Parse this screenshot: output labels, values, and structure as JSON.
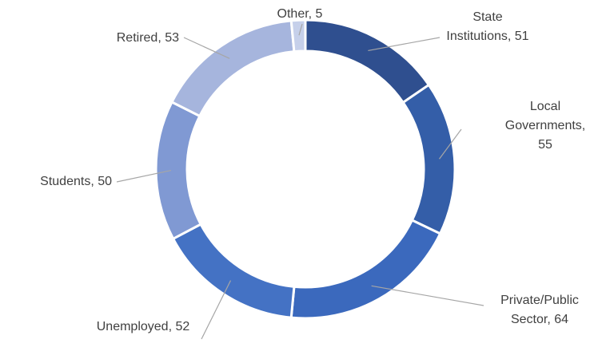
{
  "chart_data": {
    "type": "donut",
    "values": [
      51,
      55,
      64,
      52,
      50,
      53,
      5
    ],
    "value_labels": [
      "State Institutions, 51",
      "Local Governments, 55",
      "Private/Public Sector, 64",
      "Unemployed, 52",
      "Students, 50",
      "Retired, 53",
      "Other, 5"
    ],
    "colors": [
      "#2f4f8f",
      "#345ea8",
      "#3b69bd",
      "#4472c4",
      "#8099d3",
      "#a6b5dd",
      "#c6d0ea"
    ]
  }
}
